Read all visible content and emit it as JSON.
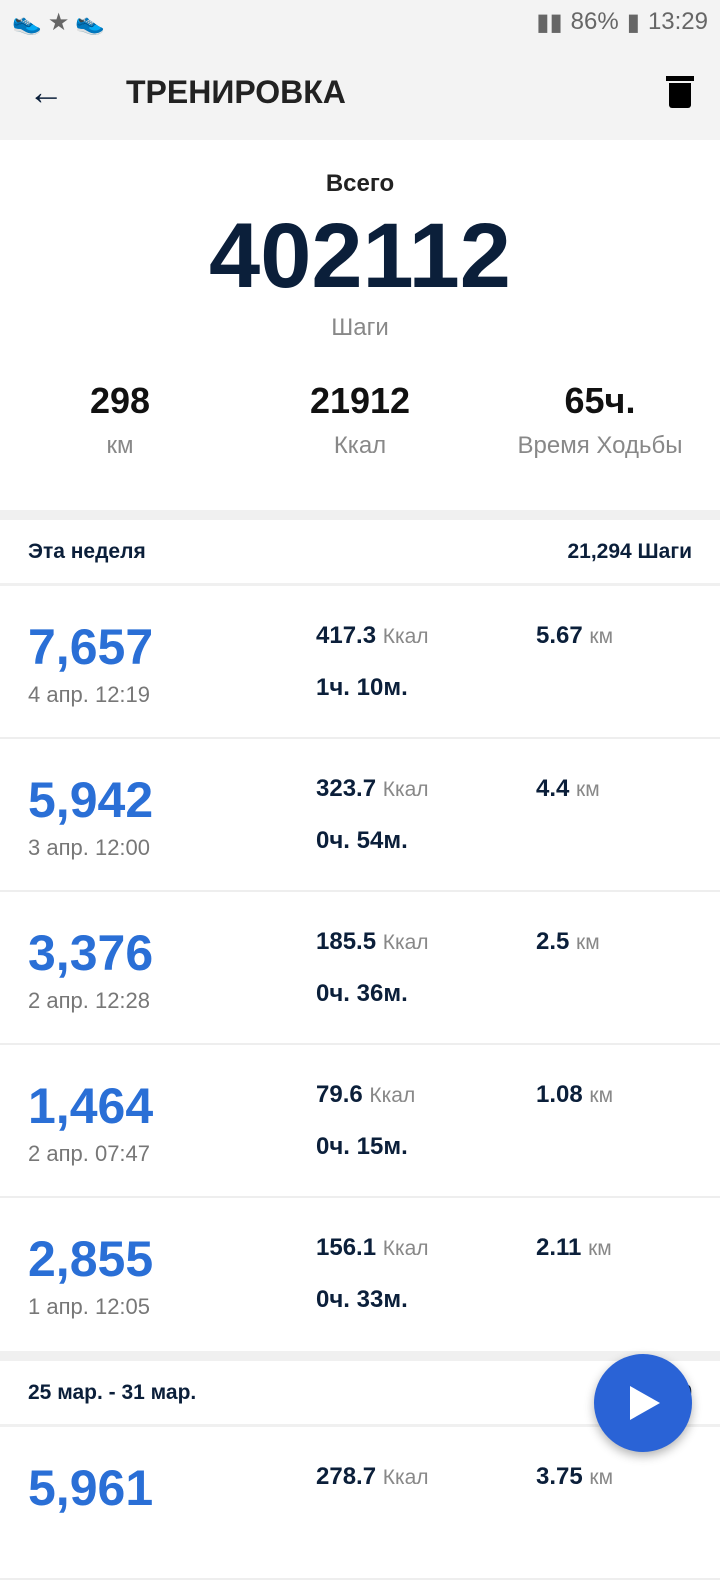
{
  "status": {
    "battery": "86%",
    "time": "13:29"
  },
  "header": {
    "title": "ТРЕНИРОВКА"
  },
  "summary": {
    "label": "Всего",
    "total": "402112",
    "unit": "Шаги",
    "stats": [
      {
        "value": "298",
        "unit": "км"
      },
      {
        "value": "21912",
        "unit": "Ккал"
      },
      {
        "value": "65ч.",
        "unit": "Время Ходьбы"
      }
    ]
  },
  "weeks": [
    {
      "title": "Эта неделя",
      "total": "21,294 Шаги",
      "rows": [
        {
          "steps": "7,657",
          "date": "4 апр. 12:19",
          "kcal": "417.3",
          "time": "1ч. 10м.",
          "km": "5.67"
        },
        {
          "steps": "5,942",
          "date": "3 апр. 12:00",
          "kcal": "323.7",
          "time": "0ч. 54м.",
          "km": "4.4"
        },
        {
          "steps": "3,376",
          "date": "2 апр. 12:28",
          "kcal": "185.5",
          "time": "0ч. 36м.",
          "km": "2.5"
        },
        {
          "steps": "1,464",
          "date": "2 апр. 07:47",
          "kcal": "79.6",
          "time": "0ч. 15м.",
          "km": "1.08"
        },
        {
          "steps": "2,855",
          "date": "1 апр. 12:05",
          "kcal": "156.1",
          "time": "0ч. 33м.",
          "km": "2.11"
        }
      ]
    },
    {
      "title": "25 мар. - 31 мар.",
      "total": "35,9",
      "rows": [
        {
          "steps": "5,961",
          "date": "",
          "kcal": "278.7",
          "time": "",
          "km": "3.75"
        }
      ]
    }
  ],
  "labels": {
    "kcal_unit": "Ккал",
    "km_unit": "км"
  },
  "colors": {
    "accent": "#2a6fd6",
    "fab": "#2a63d6"
  }
}
